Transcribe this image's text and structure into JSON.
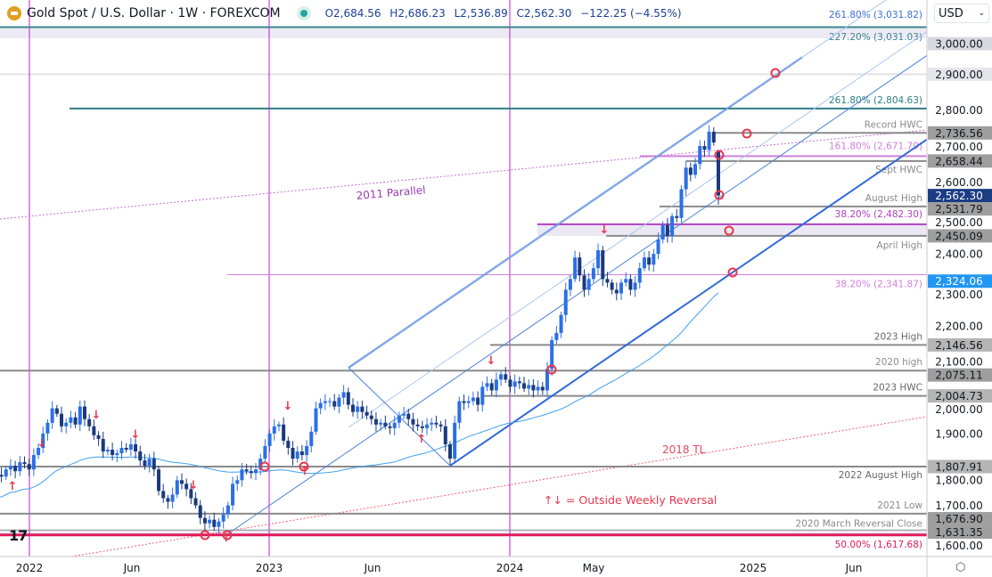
{
  "header": {
    "symbol": "Gold Spot / U.S. Dollar · 1W · FOREXCOM",
    "open": "O2,684.56",
    "high": "H2,686.23",
    "low": "L2,536.89",
    "close": "C2,562.30",
    "change": "−122.25 (−4.55%)"
  },
  "currency": "USD",
  "colors": {
    "up": "#2b6fe6",
    "down": "#1b3a7c",
    "channel": "#2f6ad8",
    "ma": "#3fa0ef",
    "vline": "#b820c8",
    "marker": "#e8364d"
  },
  "time_axis": [
    "2022",
    "Jun",
    "2023",
    "Jun",
    "2024",
    "May",
    "2025",
    "Jun"
  ],
  "price_axis": [
    "3,000.00",
    "2,900.00",
    "2,800.00",
    "2,700.00",
    "2,600.00",
    "2,500.00",
    "2,400.00",
    "2,300.00",
    "2,200.00",
    "2,100.00",
    "2,000.00",
    "1,900.00",
    "1,800.00",
    "1,700.00",
    "1,600.00"
  ],
  "price_tags": [
    {
      "text": "3,000.00",
      "bg": "#d7d9df",
      "fg": "#131722"
    },
    {
      "text": "2,900.00",
      "bg": "#e4e6ea",
      "fg": "#131722"
    },
    {
      "text": "2,736.56",
      "bg": "#9e9e9e",
      "fg": "#131722"
    },
    {
      "text": "2,658.44",
      "bg": "#9e9e9e",
      "fg": "#131722"
    },
    {
      "text": "2,562.30",
      "bg": "#1b3d84",
      "fg": "#ffffff"
    },
    {
      "text": "2,531.79",
      "bg": "#9e9e9e",
      "fg": "#131722"
    },
    {
      "text": "2,450.09",
      "bg": "#9e9e9e",
      "fg": "#131722"
    },
    {
      "text": "2,324.06",
      "bg": "#2196f3",
      "fg": "#ffffff"
    },
    {
      "text": "2,146.56",
      "bg": "#b5b5b5",
      "fg": "#131722"
    },
    {
      "text": "2,075.11",
      "bg": "#9e9e9e",
      "fg": "#131722"
    },
    {
      "text": "2,004.73",
      "bg": "#b5b5b5",
      "fg": "#131722"
    },
    {
      "text": "1,807.91",
      "bg": "#b5b5b5",
      "fg": "#131722"
    },
    {
      "text": "1,676.90",
      "bg": "#9e9e9e",
      "fg": "#131722"
    },
    {
      "text": "1,631.35",
      "bg": "#9e9e9e",
      "fg": "#131722"
    }
  ],
  "levels": [
    {
      "price": 3031.82,
      "label": "261.80% (3,031.82)",
      "color": "#3d6fd6"
    },
    {
      "price": 3031.03,
      "label": "227.20% (3,031.03)",
      "color": "#3b8590"
    },
    {
      "price": 2804.63,
      "label": "261.80% (2,804.63)",
      "color": "#2e7d86"
    },
    {
      "price": 2736.56,
      "label": "Record HWC",
      "color": "#8a8a8a"
    },
    {
      "price": 2671.79,
      "label": "161.80% (2,671.79)",
      "color": "#cf80dc"
    },
    {
      "price": 2658.44,
      "label": "Sept HWC",
      "color": "#8a8a8a"
    },
    {
      "price": 2531.79,
      "label": "August High",
      "color": "#8a8a8a"
    },
    {
      "price": 2482.3,
      "label": "38.20% (2,482.30)",
      "color": "#b040c0"
    },
    {
      "price": 2450.09,
      "label": "April High",
      "color": "#8a8a8a"
    },
    {
      "price": 2341.87,
      "label": "38.20% (2,341.87)",
      "color": "#cf80dc"
    },
    {
      "price": 2146.56,
      "label": "2023 High",
      "color": "#666666"
    },
    {
      "price": 2075.11,
      "label": "2020 high",
      "color": "#8a8a8a"
    },
    {
      "price": 2004.73,
      "label": "2023 HWC",
      "color": "#666666"
    },
    {
      "price": 1807.91,
      "label": "2022 August High",
      "color": "#666666"
    },
    {
      "price": 1676.9,
      "label": "2021 Low",
      "color": "#8a8a8a"
    },
    {
      "price": 1631.35,
      "label": "2020 March Reversal Close",
      "color": "#8a8a8a"
    },
    {
      "price": 1617.68,
      "label": "50.00% (1,617.68)",
      "color": "#e0195a"
    }
  ],
  "annotations": {
    "parallel_2011": "2011 Parallel",
    "tl_2018": "2018 TL",
    "legend": "↑↓ = Outside Weekly Reversal"
  },
  "chart_data": {
    "type": "candlestick",
    "interval": "1W",
    "ylim": [
      1560,
      3060
    ],
    "weekly_closes": [
      1785,
      1780,
      1800,
      1810,
      1795,
      1820,
      1815,
      1800,
      1840,
      1860,
      1900,
      1930,
      1970,
      1955,
      1920,
      1930,
      1945,
      1925,
      1975,
      1940,
      1920,
      1895,
      1885,
      1850,
      1855,
      1840,
      1845,
      1860,
      1855,
      1870,
      1850,
      1825,
      1810,
      1830,
      1800,
      1740,
      1720,
      1710,
      1730,
      1770,
      1760,
      1745,
      1720,
      1700,
      1665,
      1650,
      1660,
      1640,
      1655,
      1675,
      1700,
      1760,
      1770,
      1800,
      1795,
      1790,
      1800,
      1830,
      1865,
      1900,
      1920,
      1925,
      1880,
      1860,
      1830,
      1850,
      1840,
      1865,
      1905,
      1970,
      1985,
      1990,
      1990,
      1975,
      2000,
      2015,
      1980,
      1960,
      1975,
      1960,
      1950,
      1940,
      1925,
      1930,
      1920,
      1915,
      1930,
      1950,
      1955,
      1940,
      1925,
      1920,
      1915,
      1925,
      1930,
      1925,
      1920,
      1870,
      1830,
      1930,
      1990,
      1985,
      1990,
      2000,
      1980,
      2030,
      2040,
      2020,
      2050,
      2065,
      2050,
      2030,
      2045,
      2040,
      2025,
      2035,
      2020,
      2030,
      2020,
      2080,
      2160,
      2180,
      2230,
      2300,
      2330,
      2390,
      2340,
      2300,
      2330,
      2360,
      2410,
      2330,
      2320,
      2300,
      2290,
      2320,
      2330,
      2300,
      2320,
      2360,
      2390,
      2370,
      2400,
      2440,
      2480,
      2450,
      2505,
      2500,
      2580,
      2640,
      2620,
      2650,
      2700,
      2690,
      2740,
      2710,
      2562.3
    ],
    "last_candle": {
      "open": 2684.56,
      "high": 2686.23,
      "low": 2536.89,
      "close": 2562.3
    }
  }
}
